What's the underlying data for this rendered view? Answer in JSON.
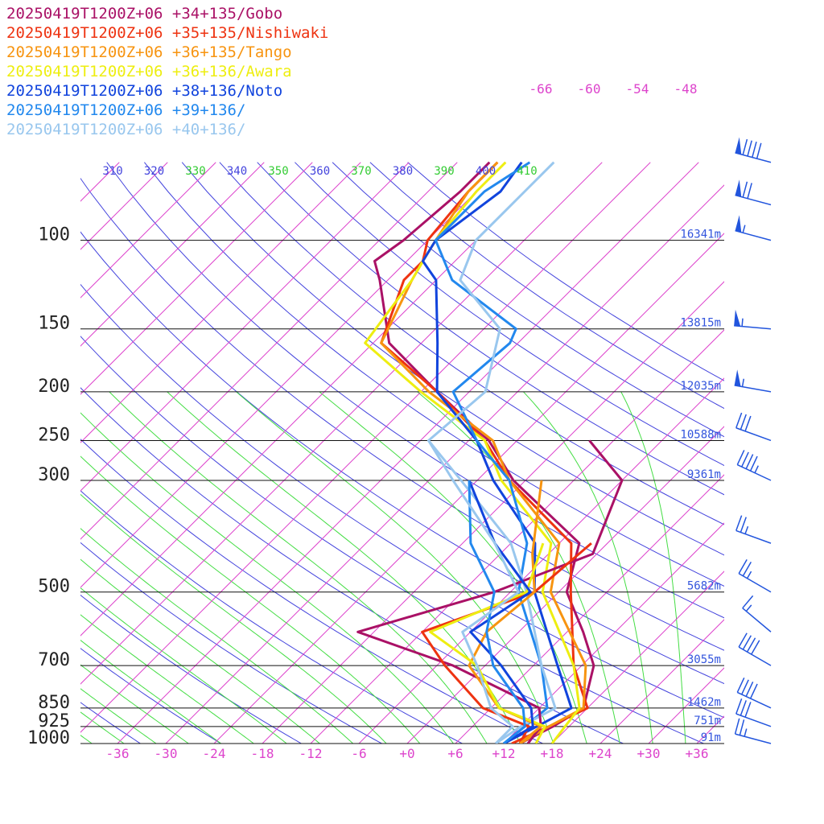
{
  "chart_data": {
    "type": "line",
    "subtype": "skew-T log-P sounding",
    "legend": [
      {
        "label": "20250419T1200Z+06 +34+135/Gobo",
        "color": "#aa1166"
      },
      {
        "label": "20250419T1200Z+06 +35+135/Nishiwaki",
        "color": "#ee3311"
      },
      {
        "label": "20250419T1200Z+06 +36+135/Tango",
        "color": "#f79410"
      },
      {
        "label": "20250419T1200Z+06 +36+136/Awara",
        "color": "#eeee11"
      },
      {
        "label": "20250419T1200Z+06 +38+136/Noto",
        "color": "#1144dd"
      },
      {
        "label": "20250419T1200Z+06 +39+136/",
        "color": "#2288ee"
      },
      {
        "label": "20250419T1200Z+06 +40+136/",
        "color": "#99c7ee"
      }
    ],
    "pressure_levels": [
      {
        "p": 100,
        "label": "100",
        "height": "16341m"
      },
      {
        "p": 150,
        "label": "150",
        "height": "13815m"
      },
      {
        "p": 200,
        "label": "200",
        "height": "12035m"
      },
      {
        "p": 250,
        "label": "250",
        "height": "10588m"
      },
      {
        "p": 300,
        "label": "300",
        "height": "9361m"
      },
      {
        "p": 500,
        "label": "500",
        "height": "5682m"
      },
      {
        "p": 700,
        "label": "700",
        "height": "3055m"
      },
      {
        "p": 850,
        "label": "850",
        "height": "1462m"
      },
      {
        "p": 925,
        "label": "925",
        "height": "751m"
      },
      {
        "p": 1000,
        "label": "1000",
        "height": "91m"
      }
    ],
    "temperature_ticks": [
      "-36",
      "-30",
      "-24",
      "-18",
      "-12",
      "-6",
      "+0",
      "+6",
      "+12",
      "+18",
      "+24",
      "+30",
      "+36"
    ],
    "temperature_tick_values": [
      -36,
      -30,
      -24,
      -18,
      -12,
      -6,
      0,
      6,
      12,
      18,
      24,
      30,
      36
    ],
    "upper_temperature_labels": [
      {
        "label": "-66",
        "t": -66
      },
      {
        "label": "-60",
        "t": -60
      },
      {
        "label": "-54",
        "t": -54
      },
      {
        "label": "-48",
        "t": -48
      }
    ],
    "theta_labels": [
      {
        "label": "310",
        "theta": 310,
        "kind": "theta"
      },
      {
        "label": "320",
        "theta": 320,
        "kind": "theta"
      },
      {
        "label": "330",
        "theta": 330,
        "kind": "thetae"
      },
      {
        "label": "340",
        "theta": 340,
        "kind": "theta"
      },
      {
        "label": "350",
        "theta": 350,
        "kind": "thetae"
      },
      {
        "label": "360",
        "theta": 360,
        "kind": "theta"
      },
      {
        "label": "370",
        "theta": 370,
        "kind": "thetae"
      },
      {
        "label": "380",
        "theta": 380,
        "kind": "theta"
      },
      {
        "label": "390",
        "theta": 390,
        "kind": "thetae"
      },
      {
        "label": "400",
        "theta": 400,
        "kind": "theta"
      },
      {
        "label": "410",
        "theta": 410,
        "kind": "thetae"
      }
    ],
    "grid": {
      "isotherm_color": "#dd44cc",
      "dry_adiabat_color": "#4444dd",
      "moist_adiabat_color": "#44dd44",
      "isobar_color": "#111111"
    },
    "units": {
      "pressure": "hPa",
      "temperature": "°C"
    },
    "series": [
      {
        "name": "20250419T1200Z+06 +34+135/Gobo",
        "color": "#aa1166",
        "points": [
          [
            1000,
            14
          ],
          [
            925,
            16
          ],
          [
            850,
            17.5
          ],
          [
            700,
            13.5
          ],
          [
            600,
            8
          ],
          [
            500,
            1
          ],
          [
            400,
            -3.5
          ],
          [
            300,
            -19.5
          ],
          [
            250,
            -27.5
          ],
          [
            200,
            -40
          ],
          [
            160,
            -52
          ],
          [
            120,
            -61
          ],
          [
            110,
            -64
          ],
          [
            100,
            -63
          ],
          [
            80,
            -62
          ],
          [
            70,
            -62
          ]
        ]
      },
      {
        "name": "20250419T1200Z+06 +35+135/Nishiwaki",
        "color": "#ee3311",
        "points": [
          [
            1000,
            13
          ],
          [
            925,
            15.5
          ],
          [
            850,
            18
          ],
          [
            700,
            11
          ],
          [
            500,
            1.5
          ],
          [
            400,
            -4.5
          ],
          [
            300,
            -20
          ],
          [
            250,
            -28
          ],
          [
            200,
            -40
          ],
          [
            160,
            -53
          ],
          [
            120,
            -58
          ],
          [
            110,
            -58
          ],
          [
            100,
            -60
          ],
          [
            80,
            -61
          ],
          [
            70,
            -61
          ]
        ]
      },
      {
        "name": "20250419T1200Z+06 +36+135/Tango",
        "color": "#f79410",
        "points": [
          [
            1000,
            14
          ],
          [
            925,
            15.5
          ],
          [
            850,
            17.5
          ],
          [
            700,
            12.5
          ],
          [
            500,
            -1
          ],
          [
            400,
            -6
          ],
          [
            300,
            -20
          ],
          [
            250,
            -27
          ],
          [
            200,
            -41
          ],
          [
            160,
            -53
          ],
          [
            120,
            -57
          ],
          [
            110,
            -58
          ],
          [
            100,
            -59
          ],
          [
            80,
            -61
          ],
          [
            70,
            -61
          ]
        ]
      },
      {
        "name": "20250419T1200Z+06 +36+136/Awara",
        "color": "#eeee11",
        "points": [
          [
            1000,
            18
          ],
          [
            925,
            17.5
          ],
          [
            850,
            17
          ],
          [
            700,
            11
          ],
          [
            500,
            -2
          ],
          [
            400,
            -7
          ],
          [
            300,
            -21
          ],
          [
            250,
            -28
          ],
          [
            200,
            -42
          ],
          [
            160,
            -55
          ],
          [
            120,
            -57
          ],
          [
            110,
            -58
          ],
          [
            100,
            -59
          ],
          [
            80,
            -60
          ],
          [
            70,
            -60
          ]
        ]
      },
      {
        "name": "20250419T1200Z+06 +38+136/Noto",
        "color": "#1144dd",
        "points": [
          [
            1000,
            12
          ],
          [
            925,
            14
          ],
          [
            850,
            16
          ],
          [
            700,
            9
          ],
          [
            500,
            -3
          ],
          [
            400,
            -9
          ],
          [
            300,
            -22
          ],
          [
            250,
            -29
          ],
          [
            200,
            -40
          ],
          [
            160,
            -46
          ],
          [
            120,
            -54
          ],
          [
            110,
            -58
          ],
          [
            100,
            -59
          ],
          [
            80,
            -57
          ],
          [
            70,
            -58
          ]
        ]
      },
      {
        "name": "20250419T1200Z+06 +39+136/",
        "color": "#2288ee",
        "points": [
          [
            1000,
            12
          ],
          [
            925,
            12.5
          ],
          [
            850,
            13
          ],
          [
            700,
            7
          ],
          [
            500,
            -5
          ],
          [
            400,
            -10
          ],
          [
            300,
            -20
          ],
          [
            250,
            -29
          ],
          [
            200,
            -38
          ],
          [
            160,
            -37
          ],
          [
            150,
            -38
          ],
          [
            120,
            -52
          ],
          [
            100,
            -59
          ],
          [
            80,
            -59
          ],
          [
            70,
            -57
          ]
        ]
      },
      {
        "name": "20250419T1200Z+06 +40+136/",
        "color": "#99c7ee",
        "points": [
          [
            1000,
            11
          ],
          [
            925,
            12
          ],
          [
            850,
            14
          ],
          [
            700,
            7
          ],
          [
            500,
            -4
          ],
          [
            400,
            -12
          ],
          [
            300,
            -26
          ],
          [
            250,
            -35
          ],
          [
            200,
            -34
          ],
          [
            150,
            -40
          ],
          [
            120,
            -51
          ],
          [
            100,
            -54
          ],
          [
            80,
            -54
          ],
          [
            70,
            -54
          ]
        ]
      },
      {
        "name": "",
        "color": "#aa1166",
        "points": [
          [
            1000,
            15
          ],
          [
            925,
            14.5
          ],
          [
            850,
            12
          ],
          [
            700,
            -4
          ],
          [
            600,
            -20
          ],
          [
            500,
            -8
          ],
          [
            420,
            -0.5
          ],
          [
            300,
            -6
          ],
          [
            250,
            -15
          ]
        ]
      },
      {
        "name": "",
        "color": "#ee3311",
        "points": [
          [
            1000,
            14
          ],
          [
            925,
            13
          ],
          [
            850,
            5
          ],
          [
            700,
            -5
          ],
          [
            600,
            -12
          ],
          [
            500,
            -3
          ],
          [
            400,
            -2
          ]
        ]
      },
      {
        "name": "",
        "color": "#f79410",
        "points": [
          [
            1000,
            14
          ],
          [
            925,
            14.5
          ],
          [
            850,
            7
          ],
          [
            700,
            -2
          ],
          [
            600,
            -4
          ],
          [
            500,
            -3
          ],
          [
            420,
            -8
          ],
          [
            300,
            -16
          ]
        ]
      },
      {
        "name": "",
        "color": "#eeee11",
        "points": [
          [
            1000,
            16
          ],
          [
            925,
            15
          ],
          [
            850,
            7
          ],
          [
            700,
            -1
          ],
          [
            600,
            -11
          ],
          [
            500,
            -4
          ],
          [
            400,
            -8
          ]
        ]
      },
      {
        "name": "",
        "color": "#1144dd",
        "points": [
          [
            1000,
            12
          ],
          [
            925,
            13.5
          ],
          [
            850,
            11
          ],
          [
            700,
            2
          ],
          [
            600,
            -6
          ],
          [
            500,
            -3.5
          ],
          [
            400,
            -14
          ],
          [
            300,
            -25
          ]
        ]
      },
      {
        "name": "",
        "color": "#2288ee",
        "points": [
          [
            1000,
            12
          ],
          [
            925,
            12.5
          ],
          [
            850,
            10
          ],
          [
            700,
            1
          ],
          [
            600,
            -4
          ],
          [
            500,
            -8
          ],
          [
            400,
            -17
          ],
          [
            300,
            -25
          ]
        ]
      },
      {
        "name": "",
        "color": "#99c7ee",
        "points": [
          [
            1000,
            11
          ],
          [
            925,
            11
          ],
          [
            850,
            6
          ],
          [
            700,
            -1
          ],
          [
            600,
            -7
          ],
          [
            500,
            -5
          ],
          [
            400,
            -14
          ],
          [
            300,
            -27
          ],
          [
            250,
            -35
          ]
        ]
      }
    ],
    "wind_barbs": [
      {
        "p": 70,
        "dir": 285,
        "speed": 90
      },
      {
        "p": 85,
        "dir": 285,
        "speed": 70
      },
      {
        "p": 100,
        "dir": 285,
        "speed": 55
      },
      {
        "p": 150,
        "dir": 275,
        "speed": 55
      },
      {
        "p": 200,
        "dir": 280,
        "speed": 55
      },
      {
        "p": 250,
        "dir": 290,
        "speed": 30
      },
      {
        "p": 300,
        "dir": 295,
        "speed": 45
      },
      {
        "p": 400,
        "dir": 290,
        "speed": 25
      },
      {
        "p": 500,
        "dir": 300,
        "speed": 25
      },
      {
        "p": 600,
        "dir": 310,
        "speed": 15
      },
      {
        "p": 700,
        "dir": 300,
        "speed": 40
      },
      {
        "p": 850,
        "dir": 295,
        "speed": 40
      },
      {
        "p": 925,
        "dir": 290,
        "speed": 30
      },
      {
        "p": 1000,
        "dir": 285,
        "speed": 25
      }
    ],
    "xlim": [
      -40,
      40
    ],
    "plim": [
      1000,
      70
    ]
  }
}
